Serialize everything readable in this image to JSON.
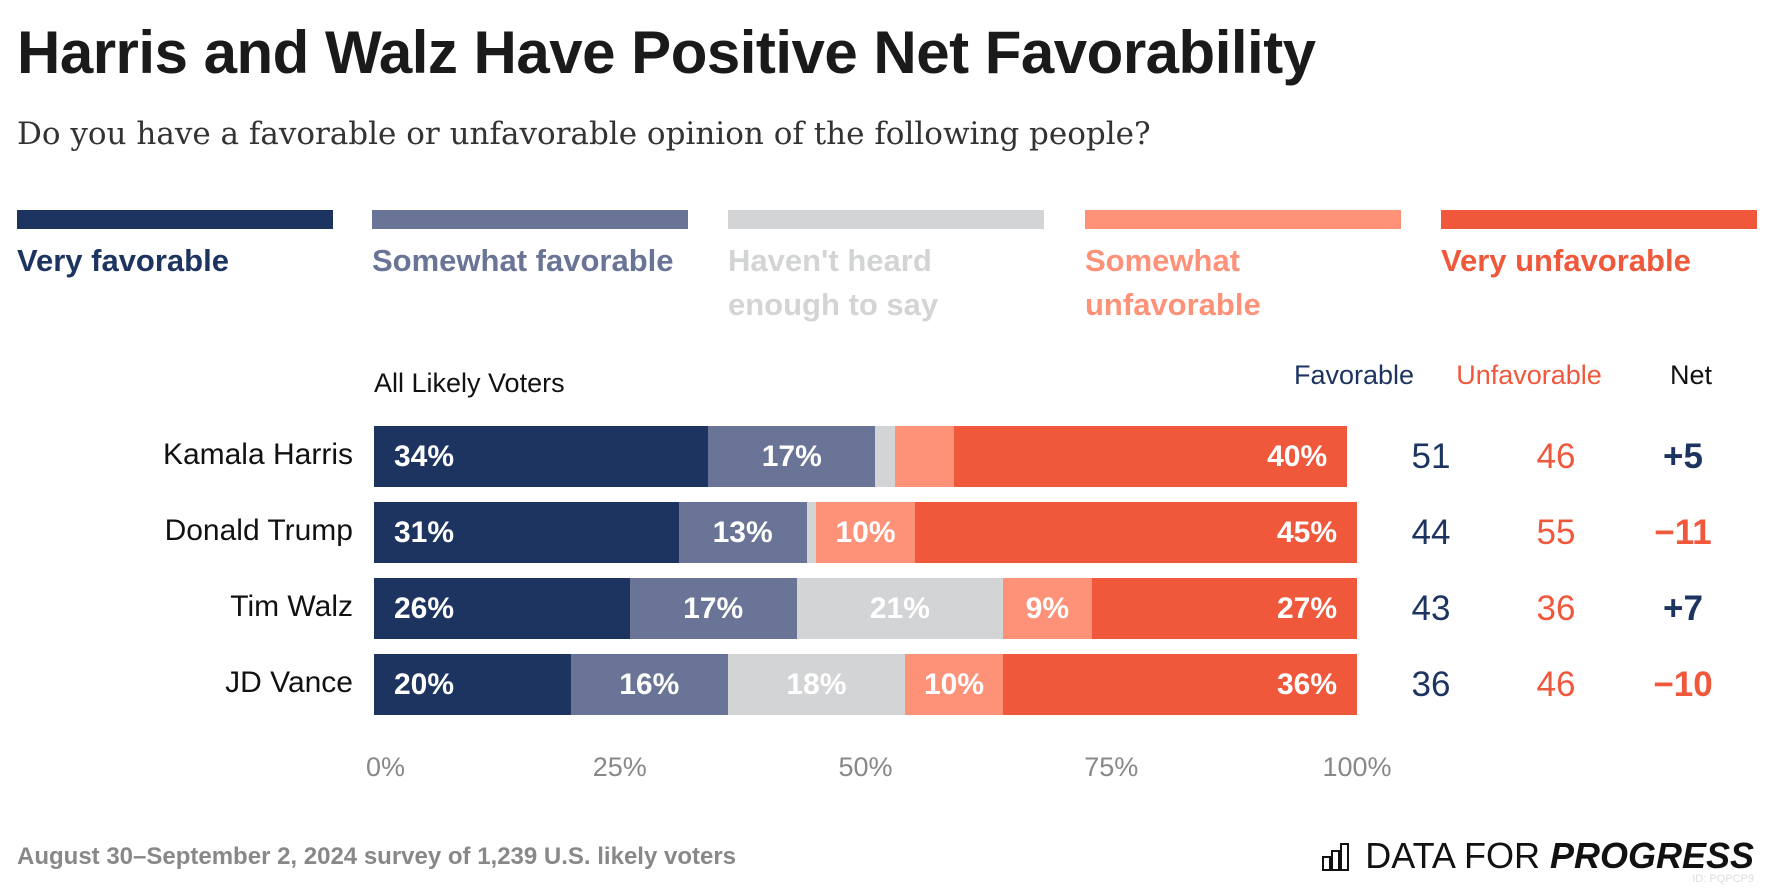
{
  "title": "Harris and Walz Have Positive Net Favorability",
  "subtitle": "Do you have a favorable or unfavorable opinion of the following people?",
  "footer": "August 30–September 2, 2024 survey of 1,239 U.S. likely voters",
  "logo": {
    "text_light": "DATA FOR",
    "text_bold": "PROGRESS",
    "id": "ID: PQPCP9",
    "icon": "bar-chart-icon"
  },
  "chart_data": {
    "type": "bar",
    "orientation": "horizontal-stacked",
    "group_label": "All Likely Voters",
    "categories": [
      "Kamala Harris",
      "Donald Trump",
      "Tim Walz",
      "JD Vance"
    ],
    "series": [
      {
        "name": "Very favorable",
        "color": "#1d3461",
        "values": [
          34,
          31,
          26,
          20
        ]
      },
      {
        "name": "Somewhat favorable",
        "color": "#6a7496",
        "values": [
          17,
          13,
          17,
          16
        ]
      },
      {
        "name": "Haven't heard enough to say",
        "color": "#d3d4d6",
        "values": [
          2,
          1,
          21,
          18
        ]
      },
      {
        "name": "Somewhat unfavorable",
        "color": "#fd9279",
        "values": [
          6,
          10,
          9,
          10
        ]
      },
      {
        "name": "Very unfavorable",
        "color": "#f0583c",
        "values": [
          40,
          45,
          27,
          36
        ]
      }
    ],
    "value_labels_shown": [
      [
        "34%",
        "17%",
        "",
        "",
        "40%"
      ],
      [
        "31%",
        "13%",
        "",
        "10%",
        "45%"
      ],
      [
        "26%",
        "17%",
        "21%",
        "9%",
        "27%"
      ],
      [
        "20%",
        "16%",
        "18%",
        "10%",
        "36%"
      ]
    ],
    "x_ticks": [
      "0%",
      "25%",
      "50%",
      "75%",
      "100%"
    ],
    "xlim": [
      0,
      100
    ],
    "legend_placement": "top",
    "summary_columns": {
      "headers": [
        "Favorable",
        "Unfavorable",
        "Net"
      ],
      "favorable": [
        "51",
        "44",
        "43",
        "36"
      ],
      "unfavorable": [
        "46",
        "55",
        "36",
        "46"
      ],
      "net": [
        "+5",
        "−11",
        "+7",
        "−10"
      ],
      "net_colors": [
        "#1d3461",
        "#f0583c",
        "#1d3461",
        "#f0583c"
      ]
    }
  }
}
